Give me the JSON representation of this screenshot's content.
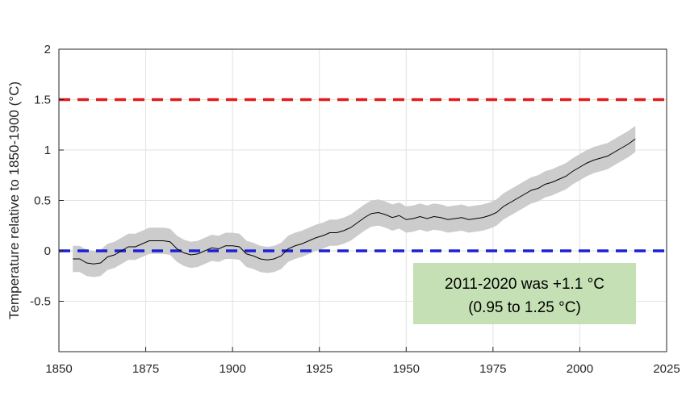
{
  "chart_data": {
    "type": "line",
    "title": "",
    "xlabel": "",
    "ylabel": "Temperature relative to 1850-1900 (°C)",
    "xlim": [
      1850,
      2025
    ],
    "ylim": [
      -1,
      2
    ],
    "xticks": [
      1850,
      1875,
      1900,
      1925,
      1950,
      1975,
      2000,
      2025
    ],
    "yticks": [
      -0.5,
      0,
      0.5,
      1,
      1.5,
      2
    ],
    "xtick_labels": [
      "1850",
      "1875",
      "1900",
      "1925",
      "1950",
      "1975",
      "2000",
      "2025"
    ],
    "ytick_labels": [
      "-0.5",
      "0",
      "0.5",
      "1",
      "1.5",
      "2"
    ],
    "grid": true,
    "reference_lines": [
      {
        "y": 1.5,
        "color": "#e41a1c",
        "style": "dashed"
      },
      {
        "y": 0,
        "color": "#1f1fd6",
        "style": "dashed"
      }
    ],
    "series": [
      {
        "x": [
          1854,
          1856,
          1858,
          1860,
          1862,
          1864,
          1866,
          1868,
          1870,
          1872,
          1874,
          1876,
          1878,
          1880,
          1882,
          1884,
          1886,
          1888,
          1890,
          1892,
          1894,
          1896,
          1898,
          1900,
          1902,
          1904,
          1906,
          1908,
          1910,
          1912,
          1914,
          1916,
          1918,
          1920,
          1922,
          1924,
          1926,
          1928,
          1930,
          1932,
          1934,
          1936,
          1938,
          1940,
          1942,
          1944,
          1946,
          1948,
          1950,
          1952,
          1954,
          1956,
          1958,
          1960,
          1962,
          1964,
          1966,
          1968,
          1970,
          1972,
          1974,
          1976,
          1978,
          1980,
          1982,
          1984,
          1986,
          1988,
          1990,
          1992,
          1994,
          1996,
          1998,
          2000,
          2002,
          2004,
          2006,
          2008,
          2010,
          2012,
          2014,
          2016
        ],
        "y": [
          -0.08,
          -0.08,
          -0.12,
          -0.13,
          -0.12,
          -0.06,
          -0.04,
          0.0,
          0.04,
          0.04,
          0.07,
          0.1,
          0.1,
          0.1,
          0.09,
          0.02,
          -0.02,
          -0.04,
          -0.03,
          0.0,
          0.03,
          0.02,
          0.05,
          0.05,
          0.04,
          -0.03,
          -0.05,
          -0.08,
          -0.09,
          -0.08,
          -0.05,
          0.02,
          0.05,
          0.07,
          0.1,
          0.13,
          0.15,
          0.18,
          0.18,
          0.2,
          0.23,
          0.28,
          0.33,
          0.37,
          0.38,
          0.36,
          0.33,
          0.35,
          0.31,
          0.32,
          0.34,
          0.32,
          0.34,
          0.33,
          0.31,
          0.32,
          0.33,
          0.31,
          0.32,
          0.33,
          0.35,
          0.38,
          0.44,
          0.48,
          0.52,
          0.56,
          0.6,
          0.62,
          0.66,
          0.68,
          0.71,
          0.74,
          0.79,
          0.83,
          0.87,
          0.9,
          0.92,
          0.94,
          0.98,
          1.02,
          1.06,
          1.11
        ],
        "uncertainty": 0.13,
        "line_color": "#000000",
        "band_color": "#cccccc"
      }
    ],
    "annotation": {
      "line1": "2011-2020 was +1.1 °C",
      "line2": "(0.95 to 1.25 °C)",
      "box_color": "#c5e0b4"
    }
  }
}
